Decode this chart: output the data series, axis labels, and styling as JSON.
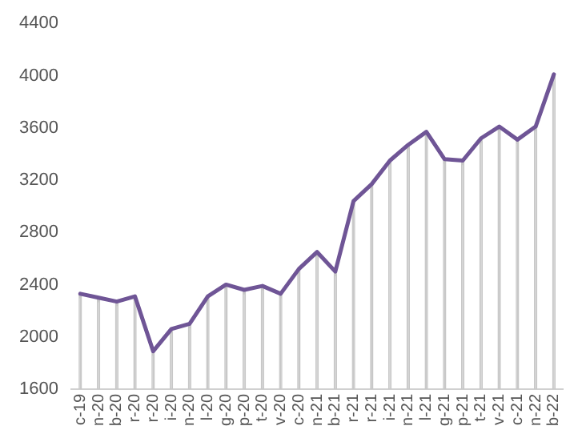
{
  "chart_data": {
    "type": "line",
    "categories": [
      "c-19",
      "n-20",
      "b-20",
      "r-20",
      "r-20",
      "i-20",
      "n-20",
      "l-20",
      "g-20",
      "p-20",
      "t-20",
      "v-20",
      "c-20",
      "n-21",
      "b-21",
      "r-21",
      "r-21",
      "i-21",
      "n-21",
      "l-21",
      "g-21",
      "p-21",
      "t-21",
      "v-21",
      "c-21",
      "n-22",
      "b-22"
    ],
    "series": [
      {
        "type": "bar",
        "color": "#c8c8c8",
        "values": [
          2330,
          2300,
          2270,
          2310,
          1890,
          2060,
          2100,
          2310,
          2400,
          2360,
          2390,
          2330,
          2520,
          2650,
          2500,
          3040,
          3170,
          3350,
          3470,
          3570,
          3360,
          3350,
          3520,
          3610,
          3510,
          3610,
          4010
        ]
      },
      {
        "color": "#6f5596",
        "values": [
          2330,
          2300,
          2270,
          2310,
          1890,
          2060,
          2100,
          2310,
          2400,
          2360,
          2390,
          2330,
          2520,
          2650,
          2500,
          3040,
          3170,
          3350,
          3470,
          3570,
          3360,
          3350,
          3520,
          3610,
          3510,
          3610,
          4010
        ]
      }
    ],
    "ylim": [
      1600,
      4400
    ],
    "yticks": [
      1600,
      2000,
      2400,
      2800,
      3200,
      3600,
      4000,
      4400
    ],
    "grid": false,
    "legend": false,
    "marker": "none",
    "line_style": "solid"
  }
}
